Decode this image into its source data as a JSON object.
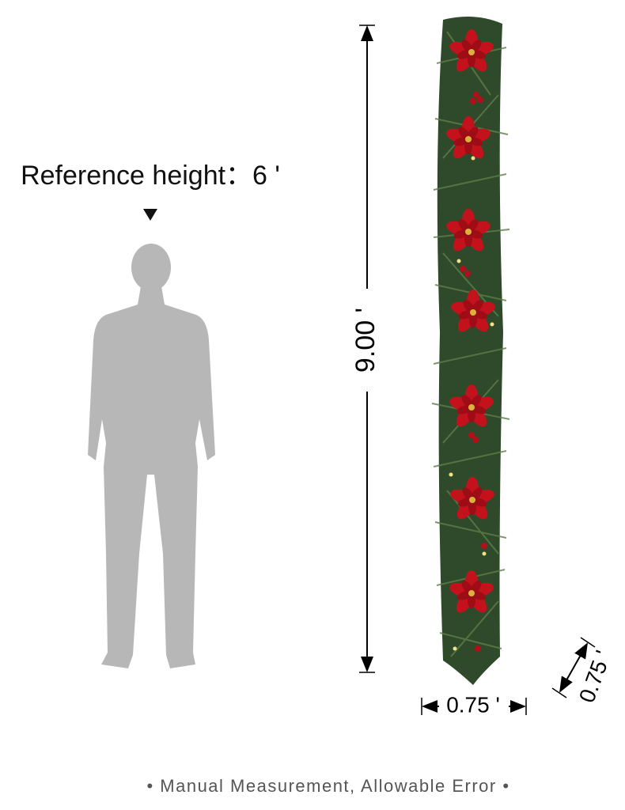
{
  "reference_label": "Reference height：6 '",
  "dimensions": {
    "length": "9.00 '",
    "width": "0.75 '",
    "depth": "0.75 '"
  },
  "footer": "• Manual Measurement,  Allowable Error •"
}
